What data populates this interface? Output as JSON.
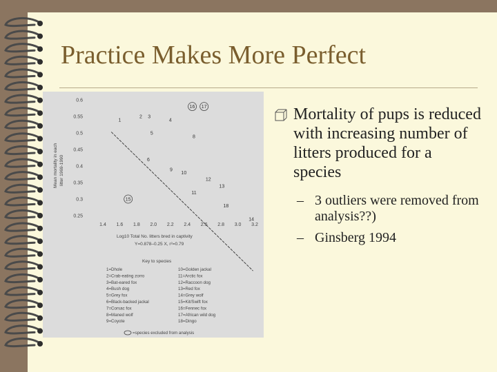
{
  "slide": {
    "title": "Practice Makes More Perfect",
    "colors": {
      "page": "#fbf8dc",
      "frame": "#8b7560",
      "title": "#7a5e2e",
      "text": "#222222",
      "ring": "#4a4a4a"
    }
  },
  "figure": {
    "ylabel_line1": "Mean mortality in each",
    "ylabel_line2": "litter 1969-1990",
    "xlabel": "Log10 Total No. litters bred in captivity",
    "equation": "Y=0.878–0.25 X, r²=0.79",
    "key_title": "Key to species",
    "key_left": [
      "1=Dhole",
      "2=Crab-eating zorro",
      "3=Bat-eared fox",
      "4=Bush dog",
      "5=Grey fox",
      "6=Black-backed jackal",
      "7=Corsac fox",
      "8=Maned wolf",
      "9=Coyote"
    ],
    "key_right": [
      "10=Golden jackal",
      "11=Arctic fox",
      "12=Raccoon dog",
      "13=Red fox",
      "14=Grey wolf",
      "15=Kit/Swift fox",
      "16=Fennec fox",
      "17=African wild dog",
      "18=Dingo"
    ],
    "key_note": "=species excluded from analysis",
    "chart_data": {
      "type": "scatter",
      "xlim": [
        1.4,
        3.2
      ],
      "ylim": [
        0.25,
        0.6
      ],
      "x_ticks": [
        "1.4",
        "1.6",
        "1.8",
        "2.0",
        "2.2",
        "2.4",
        "2.6",
        "2.8",
        "3.0",
        "3.2"
      ],
      "y_ticks": [
        "0.6",
        "0.55",
        "0.5",
        "0.45",
        "0.4",
        "0.35",
        "0.3",
        "0.25"
      ],
      "regression": {
        "intercept": 0.878,
        "slope": -0.25
      },
      "points": [
        {
          "label": "1",
          "x": 1.6,
          "y": 0.54,
          "excluded": false
        },
        {
          "label": "2",
          "x": 1.85,
          "y": 0.55,
          "excluded": false
        },
        {
          "label": "3",
          "x": 1.95,
          "y": 0.55,
          "excluded": false
        },
        {
          "label": "4",
          "x": 2.2,
          "y": 0.54,
          "excluded": false
        },
        {
          "label": "5",
          "x": 1.98,
          "y": 0.5,
          "excluded": false
        },
        {
          "label": "6",
          "x": 1.94,
          "y": 0.42,
          "excluded": false
        },
        {
          "label": "8",
          "x": 2.48,
          "y": 0.49,
          "excluded": false
        },
        {
          "label": "9",
          "x": 2.21,
          "y": 0.39,
          "excluded": false
        },
        {
          "label": "10",
          "x": 2.36,
          "y": 0.38,
          "excluded": false
        },
        {
          "label": "11",
          "x": 2.48,
          "y": 0.32,
          "excluded": false
        },
        {
          "label": "12",
          "x": 2.65,
          "y": 0.36,
          "excluded": false
        },
        {
          "label": "13",
          "x": 2.81,
          "y": 0.34,
          "excluded": false
        },
        {
          "label": "14",
          "x": 3.16,
          "y": 0.24,
          "excluded": false
        },
        {
          "label": "15",
          "x": 1.7,
          "y": 0.3,
          "excluded": true
        },
        {
          "label": "16",
          "x": 2.46,
          "y": 0.58,
          "excluded": true
        },
        {
          "label": "17",
          "x": 2.6,
          "y": 0.58,
          "excluded": true
        },
        {
          "label": "18",
          "x": 2.86,
          "y": 0.28,
          "excluded": false
        }
      ]
    }
  },
  "bullets": {
    "main": "Mortality of pups is reduced with increasing number of litters produced for a species",
    "sub": [
      "3 outliers were removed from analysis??)",
      "Ginsberg 1994"
    ]
  }
}
